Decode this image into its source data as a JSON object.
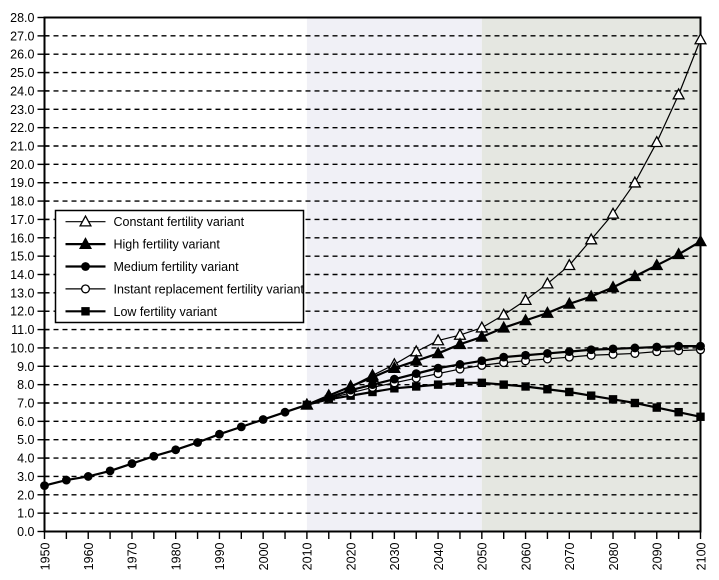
{
  "chart_data": {
    "type": "line",
    "title": "",
    "xlabel": "",
    "ylabel": "",
    "x_axis": {
      "min": 1950,
      "max": 2100,
      "minor_tick_step": 5,
      "label_step": 10,
      "tick_labels": [
        "1950",
        "1960",
        "1970",
        "1980",
        "1990",
        "2000",
        "2010",
        "2020",
        "2030",
        "2040",
        "2050",
        "2060",
        "2070",
        "2080",
        "2090",
        "2100"
      ],
      "label_rotation_deg": -90
    },
    "y_axis": {
      "min": 0,
      "max": 28,
      "tick_step": 1,
      "tick_labels": [
        "0.0",
        "1.0",
        "2.0",
        "3.0",
        "4.0",
        "5.0",
        "6.0",
        "7.0",
        "8.0",
        "9.0",
        "10.0",
        "11.0",
        "12.0",
        "13.0",
        "14.0",
        "15.0",
        "16.0",
        "17.0",
        "18.0",
        "19.0",
        "20.0",
        "21.0",
        "22.0",
        "23.0",
        "24.0",
        "25.0",
        "26.0",
        "27.0",
        "28.0"
      ],
      "gridlines": "dashed-horizontal"
    },
    "background_bands": [
      {
        "from": 1950,
        "to": 2010,
        "color": "#ffffff"
      },
      {
        "from": 2010,
        "to": 2050,
        "color": "#f0f0f6"
      },
      {
        "from": 2050,
        "to": 2100,
        "color": "#e5e7e1"
      }
    ],
    "historical": {
      "note": "shared estimates curve 1950-2010, thick line with filled circle markers",
      "years": [
        1950,
        1955,
        1960,
        1965,
        1970,
        1975,
        1980,
        1985,
        1990,
        1995,
        2000,
        2005,
        2010
      ],
      "values": [
        2.5,
        2.8,
        3.0,
        3.3,
        3.7,
        4.1,
        4.45,
        4.85,
        5.3,
        5.7,
        6.1,
        6.5,
        6.9
      ]
    },
    "projection_years": [
      2010,
      2015,
      2020,
      2025,
      2030,
      2035,
      2040,
      2045,
      2050,
      2055,
      2060,
      2065,
      2070,
      2075,
      2080,
      2085,
      2090,
      2095,
      2100
    ],
    "series": [
      {
        "name": "Constant fertility variant",
        "marker": "triangle-open",
        "line": "thin",
        "values": [
          6.9,
          7.4,
          7.9,
          8.5,
          9.1,
          9.8,
          10.4,
          10.7,
          11.1,
          11.8,
          12.6,
          13.5,
          14.5,
          15.9,
          17.3,
          19.0,
          21.2,
          23.8,
          26.8
        ]
      },
      {
        "name": "High fertility variant",
        "marker": "triangle-filled",
        "line": "thick",
        "values": [
          6.9,
          7.4,
          7.9,
          8.4,
          8.9,
          9.3,
          9.7,
          10.2,
          10.6,
          11.1,
          11.5,
          11.9,
          12.4,
          12.8,
          13.3,
          13.9,
          14.5,
          15.1,
          15.8
        ]
      },
      {
        "name": "Medium fertility variant",
        "marker": "circle-filled",
        "line": "thick",
        "values": [
          6.9,
          7.3,
          7.7,
          8.0,
          8.3,
          8.6,
          8.9,
          9.1,
          9.3,
          9.5,
          9.6,
          9.7,
          9.8,
          9.9,
          9.95,
          10.0,
          10.05,
          10.1,
          10.1
        ]
      },
      {
        "name": "Instant replacement fertility variant",
        "marker": "circle-open",
        "line": "thin",
        "values": [
          6.9,
          7.25,
          7.55,
          7.85,
          8.1,
          8.35,
          8.6,
          8.85,
          9.05,
          9.2,
          9.3,
          9.4,
          9.5,
          9.6,
          9.65,
          9.7,
          9.8,
          9.85,
          9.9
        ]
      },
      {
        "name": "Low fertility variant",
        "marker": "square-filled",
        "line": "thick",
        "values": [
          6.9,
          7.2,
          7.4,
          7.6,
          7.8,
          7.9,
          8.0,
          8.1,
          8.1,
          8.0,
          7.9,
          7.75,
          7.6,
          7.4,
          7.2,
          7.0,
          6.75,
          6.5,
          6.25
        ]
      }
    ],
    "legend": {
      "position": "upper-left",
      "entries": [
        "Constant fertility variant",
        "High fertility variant",
        "Medium fertility variant",
        "Instant replacement fertility variant",
        "Low fertility variant"
      ]
    },
    "colors": {
      "series": "#000000",
      "grid": "#000000",
      "frame": "#000000",
      "legend_background": "#ffffff"
    }
  }
}
